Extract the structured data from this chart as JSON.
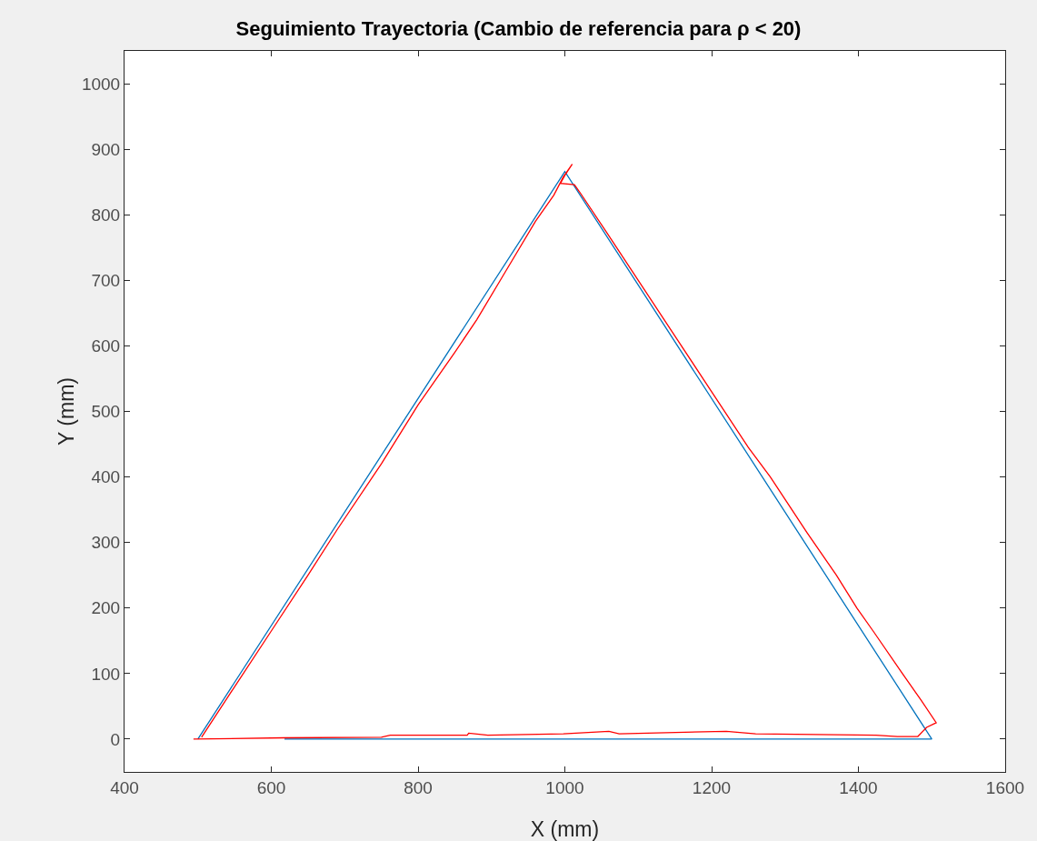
{
  "chart_data": {
    "type": "line",
    "title": "Seguimiento Trayectoria (Cambio de referencia para ρ < 20)",
    "xlabel": "X (mm)",
    "ylabel": "Y (mm)",
    "series": [
      {
        "color": "#0072bd",
        "x": [
          500,
          1000,
          1500,
          618
        ],
        "values": [
          0,
          866,
          0,
          0
        ]
      },
      {
        "color": "#ff0000",
        "x": [
          505,
          550,
          600,
          650,
          690,
          750,
          800,
          850,
          880,
          920,
          960,
          985,
          998,
          1010,
          1000,
          994,
          1013,
          1020,
          1060,
          1100,
          1150,
          1200,
          1250,
          1280,
          1330,
          1370,
          1398,
          1420,
          1460,
          1485,
          1506,
          1493,
          1481,
          1453,
          1424,
          1260,
          1220,
          1074,
          1060,
          998,
          895,
          869,
          867,
          762,
          750,
          618,
          494
        ],
        "values": [
          3,
          80,
          165,
          250,
          320,
          420,
          510,
          590,
          640,
          715,
          790,
          830,
          858,
          877,
          860,
          848,
          846,
          835,
          768,
          700,
          615,
          530,
          445,
          400,
          315,
          250,
          200,
          165,
          100,
          60,
          25,
          18,
          4,
          4,
          6,
          8,
          12,
          8,
          12,
          8,
          6,
          9,
          6,
          6,
          3,
          2,
          0
        ]
      }
    ],
    "xlim": [
      400,
      1600
    ],
    "xticks": [
      400,
      600,
      800,
      1000,
      1200,
      1400,
      1600
    ],
    "ylim": [
      -50,
      1050
    ],
    "yticks": [
      0,
      100,
      200,
      300,
      400,
      500,
      600,
      700,
      800,
      900,
      1000
    ],
    "grid": false
  }
}
